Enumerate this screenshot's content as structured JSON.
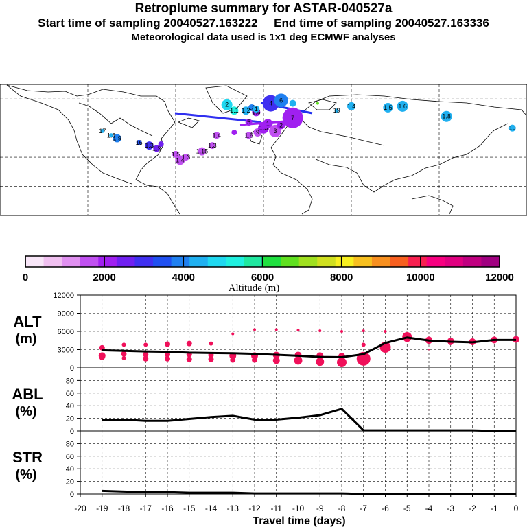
{
  "header": {
    "title": "Retroplume summary for ASTAR-040527a",
    "start_label": "Start time of sampling 20040527.163222",
    "end_label": "End time of sampling 20040527.163336",
    "met_label": "Meteorological data used is 1x1 deg ECMWF analyses"
  },
  "colorbar": {
    "label": "Altitude (m)",
    "tick_labels": [
      "0",
      "2000",
      "4000",
      "6000",
      "8000",
      "10000",
      "12000"
    ],
    "colors": [
      "#f8e6f8",
      "#f0c0f0",
      "#e090f0",
      "#c050f0",
      "#a020f0",
      "#7020f0",
      "#4030f0",
      "#2050f0",
      "#2080f0",
      "#20b0f0",
      "#20d8f0",
      "#20f0e0",
      "#20e8a0",
      "#20e040",
      "#60e020",
      "#a0e020",
      "#d0e020",
      "#f8f020",
      "#f8c020",
      "#f89020",
      "#f86020",
      "#f82050",
      "#f80080",
      "#e00080",
      "#c00080",
      "#a00080"
    ]
  },
  "map": {
    "dots": [
      {
        "lon": -100,
        "lat": 53,
        "alt": 4000,
        "r": 6,
        "label": "1.9"
      },
      {
        "lon": -110,
        "lat": 58,
        "alt": 4400,
        "r": 3,
        "label": "17"
      },
      {
        "lon": -104,
        "lat": 55,
        "alt": 4200,
        "r": 3,
        "label": "1.8"
      },
      {
        "lon": -85,
        "lat": 50,
        "alt": 3500,
        "r": 4,
        "label": "16"
      },
      {
        "lon": -78,
        "lat": 48,
        "alt": 2800,
        "r": 6,
        "label": "1.3"
      },
      {
        "lon": -73,
        "lat": 46,
        "alt": 2500,
        "r": 5,
        "label": "1.3"
      },
      {
        "lon": -70,
        "lat": 49,
        "alt": 2400,
        "r": 4,
        "label": ""
      },
      {
        "lon": -60,
        "lat": 42,
        "alt": 1800,
        "r": 5,
        "label": "1.5"
      },
      {
        "lon": -57,
        "lat": 38,
        "alt": 1700,
        "r": 7,
        "label": "1.4"
      },
      {
        "lon": -53,
        "lat": 40,
        "alt": 1600,
        "r": 5,
        "label": "1.3"
      },
      {
        "lon": -42,
        "lat": 44,
        "alt": 1600,
        "r": 6,
        "label": "1.15"
      },
      {
        "lon": -35,
        "lat": 48,
        "alt": 1700,
        "r": 5,
        "label": "1.3"
      },
      {
        "lon": -32,
        "lat": 55,
        "alt": 1800,
        "r": 5,
        "label": "1.4"
      },
      {
        "lon": -20,
        "lat": 57,
        "alt": 2200,
        "r": 4,
        "label": ""
      },
      {
        "lon": -10,
        "lat": 55,
        "alt": 1600,
        "r": 5,
        "label": "1.6"
      },
      {
        "lon": -4,
        "lat": 57,
        "alt": 1800,
        "r": 6,
        "label": "9"
      },
      {
        "lon": 0,
        "lat": 60,
        "alt": 1900,
        "r": 8,
        "label": "1.3"
      },
      {
        "lon": 3,
        "lat": 63,
        "alt": 2000,
        "r": 7,
        "label": "1"
      },
      {
        "lon": 8,
        "lat": 58,
        "alt": 1500,
        "r": 9,
        "label": "3"
      },
      {
        "lon": 12,
        "lat": 62,
        "alt": 2000,
        "r": 6,
        "label": "2"
      },
      {
        "lon": 20,
        "lat": 67,
        "alt": 2100,
        "r": 15,
        "label": "7"
      },
      {
        "lon": -10,
        "lat": 64,
        "alt": 2100,
        "r": 5,
        "label": "5"
      },
      {
        "lon": -5,
        "lat": 71,
        "alt": 2300,
        "r": 6,
        "label": "1.6"
      },
      {
        "lon": -8,
        "lat": 74,
        "alt": 3800,
        "r": 5,
        "label": "13"
      },
      {
        "lon": -25,
        "lat": 76,
        "alt": 5000,
        "r": 8,
        "label": "2"
      },
      {
        "lon": -20,
        "lat": 72,
        "alt": 5500,
        "r": 6,
        "label": "1.1"
      },
      {
        "lon": -12,
        "lat": 72,
        "alt": 4500,
        "r": 6,
        "label": "1.2"
      },
      {
        "lon": -5,
        "lat": 73,
        "alt": 4600,
        "r": 5,
        "label": "1"
      },
      {
        "lon": 5,
        "lat": 77,
        "alt": 3200,
        "r": 12,
        "label": "4"
      },
      {
        "lon": 12,
        "lat": 79,
        "alt": 4000,
        "r": 10,
        "label": "6"
      },
      {
        "lon": 20,
        "lat": 77,
        "alt": 4200,
        "r": 5,
        "label": ""
      },
      {
        "lon": 37,
        "lat": 77,
        "alt": 6500,
        "r": 2,
        "label": ""
      },
      {
        "lon": 50,
        "lat": 72,
        "alt": 4400,
        "r": 3,
        "label": "19"
      },
      {
        "lon": 60,
        "lat": 75,
        "alt": 4500,
        "r": 6,
        "label": "1.4"
      },
      {
        "lon": 85,
        "lat": 74,
        "alt": 4300,
        "r": 7,
        "label": "1.5"
      },
      {
        "lon": 95,
        "lat": 75,
        "alt": 4200,
        "r": 8,
        "label": "1.6"
      },
      {
        "lon": 125,
        "lat": 68,
        "alt": 4300,
        "r": 8,
        "label": "1.8"
      },
      {
        "lon": 170,
        "lat": 60,
        "alt": 4300,
        "r": 5,
        "label": "19"
      }
    ]
  },
  "chart_data": [
    {
      "type": "scatter",
      "name": "ALT",
      "ylabel": "ALT",
      "yunit": "(m)",
      "ylim": [
        0,
        12000
      ],
      "yticks": [
        "0",
        "3000",
        "6000",
        "9000",
        "12000"
      ],
      "xlim": [
        -20,
        0
      ],
      "mean_line": {
        "x": [
          -19,
          -18,
          -17,
          -16,
          -15,
          -14,
          -13,
          -12,
          -11,
          -10,
          -9,
          -8,
          -7,
          -6,
          -5,
          -4,
          -3,
          -2,
          -1,
          0
        ],
        "y": [
          2900,
          2800,
          2700,
          2650,
          2500,
          2450,
          2400,
          2300,
          2150,
          2000,
          1800,
          1750,
          2250,
          4100,
          5000,
          4500,
          4300,
          4200,
          4600,
          4600
        ]
      },
      "series": [
        {
          "name": "upper",
          "x": [
            -19,
            -18,
            -17,
            -16,
            -15,
            -14,
            -13,
            -12,
            -11,
            -10,
            -9,
            -8,
            -7,
            -6,
            -5,
            -4,
            -3,
            -2,
            -1,
            0
          ],
          "y": [
            3300,
            3800,
            3800,
            3900,
            4000,
            4000,
            5600,
            6300,
            6300,
            6200,
            6100,
            6000,
            6100,
            6000,
            5100,
            4600,
            4400,
            4300,
            4600,
            4700
          ],
          "r": [
            4,
            3,
            3,
            4,
            4,
            3,
            2,
            2,
            2,
            2,
            2,
            2,
            2,
            2,
            7,
            5,
            5,
            5,
            5,
            5
          ]
        },
        {
          "name": "mid",
          "x": [
            -19,
            -18,
            -17,
            -16,
            -15,
            -14,
            -13,
            -12,
            -11,
            -10,
            -9,
            -8,
            -7,
            -6,
            -5,
            -4,
            -3,
            -2,
            -1,
            0
          ],
          "y": [
            2000,
            2300,
            2200,
            2200,
            2200,
            2100,
            2000,
            2000,
            2100,
            2100,
            2000,
            1900,
            3800,
            3500,
            4800,
            4500,
            4200,
            4200,
            4500,
            4600
          ],
          "r": [
            5,
            4,
            4,
            4,
            4,
            4,
            5,
            5,
            5,
            5,
            5,
            5,
            3,
            6,
            5,
            5,
            4,
            4,
            4,
            4
          ]
        },
        {
          "name": "lower",
          "x": [
            -19,
            -18,
            -17,
            -16,
            -15,
            -14,
            -13,
            -12,
            -11,
            -10,
            -9,
            -8,
            -7,
            -6,
            -5,
            -4,
            -3,
            -2,
            -1,
            0
          ],
          "y": [
            1700,
            1600,
            1500,
            1500,
            1400,
            1400,
            1300,
            1300,
            1200,
            1200,
            1000,
            900,
            1500,
            3400,
            4800,
            3000,
            4000,
            4000,
            4500,
            4500
          ],
          "r": [
            4,
            3,
            4,
            4,
            4,
            4,
            4,
            4,
            5,
            6,
            6,
            7,
            10,
            8,
            2,
            1,
            2,
            1,
            1,
            1
          ]
        }
      ]
    },
    {
      "type": "line",
      "name": "ABL",
      "ylabel": "ABL",
      "yunit": "(%)",
      "ylim": [
        0,
        100
      ],
      "yticks": [
        "0",
        "20",
        "40",
        "60",
        "80"
      ],
      "x": [
        -19,
        -18,
        -17,
        -16,
        -15,
        -14,
        -13,
        -12,
        -11,
        -10,
        -9,
        -8,
        -7,
        -6,
        -5,
        -4,
        -3,
        -2,
        -1,
        0
      ],
      "y": [
        17,
        18,
        16,
        16,
        19,
        22,
        24,
        18,
        18,
        21,
        25,
        35,
        1,
        1,
        1,
        1,
        1,
        1,
        0,
        0
      ]
    },
    {
      "type": "line",
      "name": "STR",
      "ylabel": "STR",
      "yunit": "(%)",
      "ylim": [
        0,
        100
      ],
      "yticks": [
        "0",
        "20",
        "40",
        "60",
        "80"
      ],
      "x": [
        -19,
        -18,
        -17,
        -16,
        -15,
        -14,
        -13,
        -12,
        -11,
        -10,
        -9,
        -8,
        -7,
        -6,
        -5,
        -4,
        -3,
        -2,
        -1,
        0
      ],
      "y": [
        5,
        4,
        3,
        3,
        2,
        2,
        2,
        1,
        1,
        1,
        1,
        1,
        0,
        0,
        0,
        0,
        0,
        0,
        0,
        0
      ],
      "xlabel": "Travel time (days)",
      "xticks": [
        "-20",
        "-19",
        "-18",
        "-17",
        "-16",
        "-15",
        "-14",
        "-13",
        "-12",
        "-11",
        "-10",
        "-9",
        "-8",
        "-7",
        "-6",
        "-5",
        "-4",
        "-3",
        "-2",
        "-1",
        "0"
      ]
    }
  ]
}
